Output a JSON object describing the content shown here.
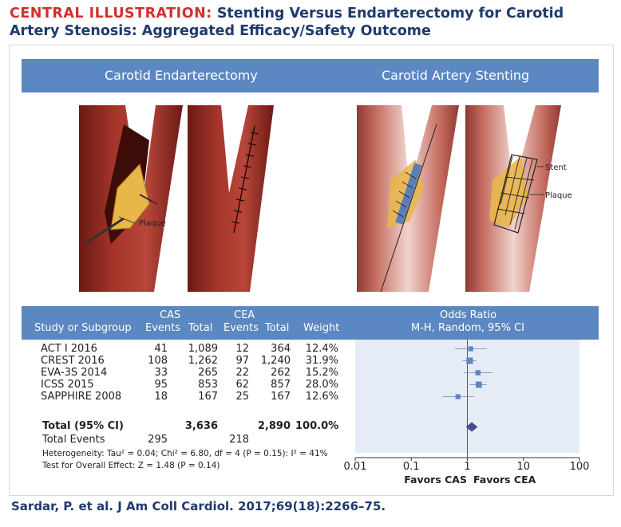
{
  "title": {
    "lead": "CENTRAL ILLUSTRATION:",
    "text": "Stenting Versus Endarterectomy for Carotid Artery Stenosis: Aggregated Efficacy/Safety Outcome"
  },
  "panels": {
    "left": "Carotid Endarterectomy",
    "right": "Carotid Artery Stenting",
    "labels": {
      "plaque_left": "Plaque",
      "stent": "Stent",
      "plaque_right": "Plaque"
    }
  },
  "table": {
    "headers": {
      "study": "Study or Subgroup",
      "cas": "CAS",
      "cea": "CEA",
      "events1": "Events",
      "total1": "Total",
      "events2": "Events",
      "total2": "Total",
      "weight": "Weight",
      "or1": "Odds Ratio",
      "or2": "M-H, Random, 95% CI"
    },
    "rows": [
      {
        "study": "ACT I 2016",
        "cas_events": "41",
        "cas_total": "1,089",
        "cea_events": "12",
        "cea_total": "364",
        "weight": "12.4%"
      },
      {
        "study": "CREST 2016",
        "cas_events": "108",
        "cas_total": "1,262",
        "cea_events": "97",
        "cea_total": "1,240",
        "weight": "31.9%"
      },
      {
        "study": "EVA-3S 2014",
        "cas_events": "33",
        "cas_total": "265",
        "cea_events": "22",
        "cea_total": "262",
        "weight": "15.2%"
      },
      {
        "study": "ICSS 2015",
        "cas_events": "95",
        "cas_total": "853",
        "cea_events": "62",
        "cea_total": "857",
        "weight": "28.0%"
      },
      {
        "study": "SAPPHIRE 2008",
        "cas_events": "18",
        "cas_total": "167",
        "cea_events": "25",
        "cea_total": "167",
        "weight": "12.6%"
      }
    ],
    "total_row": {
      "label": "Total (95% CI)",
      "cas_total": "3,636",
      "cea_total": "2,890",
      "weight": "100.0%"
    },
    "events_row": {
      "label": "Total Events",
      "cas_events": "295",
      "cea_events": "218"
    },
    "heterogeneity": "Heterogeneity: Tau² = 0.04; Chi² = 6.80, df = 4 (P = 0.15): I² = 41%",
    "overall": "Test for Overall Effect: Z = 1.48 (P = 0.14)"
  },
  "forest": {
    "ticks": [
      "0.01",
      "0.1",
      "1",
      "10",
      "100"
    ],
    "favors_left": "Favors CAS",
    "favors_right": "Favors CEA",
    "colors": {
      "marker": "#5b87c2",
      "diamond": "#4b4b8f",
      "panel": "#e6ecf6"
    }
  },
  "chart_data": {
    "type": "scatter",
    "x_scale": "log",
    "xlim": [
      0.01,
      100
    ],
    "studies": [
      {
        "name": "ACT I 2016",
        "or": 1.15,
        "ci": [
          0.6,
          2.2
        ],
        "weight": 12.4
      },
      {
        "name": "CREST 2016",
        "or": 1.1,
        "ci": [
          0.82,
          1.45
        ],
        "weight": 31.9
      },
      {
        "name": "EVA-3S 2014",
        "or": 1.55,
        "ci": [
          0.85,
          2.8
        ],
        "weight": 15.2
      },
      {
        "name": "ICSS 2015",
        "or": 1.6,
        "ci": [
          1.1,
          2.2
        ],
        "weight": 28.0
      },
      {
        "name": "SAPPHIRE 2008",
        "or": 0.68,
        "ci": [
          0.36,
          1.3
        ],
        "weight": 12.6
      }
    ],
    "pooled": {
      "or": 1.2,
      "ci": [
        0.94,
        1.53
      ]
    }
  },
  "citation": "Sardar, P. et al. J Am Coll Cardiol. 2017;69(18):2266–75."
}
